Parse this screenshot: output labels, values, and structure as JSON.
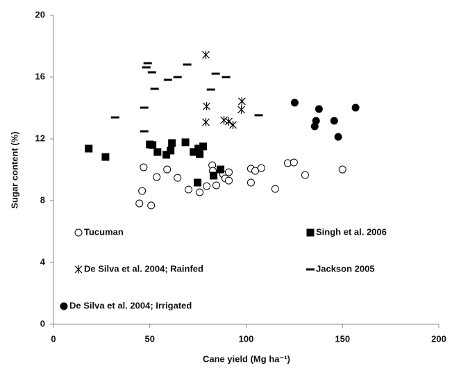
{
  "chart_data": {
    "type": "scatter",
    "x_label": "Cane yield (Mg ha⁻¹)",
    "y_label": "Sugar content (%)",
    "xlim": [
      0,
      200
    ],
    "xticks": [
      0,
      50,
      100,
      150,
      200
    ],
    "ylim": [
      0,
      20
    ],
    "yticks": [
      0,
      4,
      8,
      12,
      16,
      20
    ],
    "grid": false,
    "series": [
      {
        "name": "Tucuman",
        "color": "#000000",
        "marker": "circle-open",
        "x": [
          46.8,
          46,
          44.6,
          50.7,
          53.6,
          59,
          64.4,
          70.1,
          75.9,
          79.5,
          82.4,
          82.7,
          84.5,
          88.1,
          89.2,
          91,
          91,
          102.5,
          102.5,
          104.7,
          107.9,
          115.1,
          121.6,
          124.8,
          130.6,
          150
        ],
        "values": [
          10.16,
          8.63,
          7.82,
          7.69,
          9.53,
          10.02,
          9.48,
          8.72,
          8.54,
          8.94,
          10.29,
          9.93,
          8.99,
          9.71,
          9.44,
          9.84,
          9.3,
          10.07,
          9.17,
          9.93,
          10.11,
          8.76,
          10.43,
          10.47,
          9.66,
          10.02
        ]
      },
      {
        "name": "Singh et al. 2006",
        "color": "#000000",
        "marker": "square",
        "x": [
          18.3,
          27,
          50,
          51.4,
          54,
          58.6,
          60.8,
          61.5,
          68.5,
          72.7,
          75.2,
          75.9,
          77.7,
          74.8,
          83.1,
          86.7
        ],
        "values": [
          11.37,
          10.83,
          11.64,
          11.6,
          11.15,
          10.97,
          11.24,
          11.73,
          11.78,
          11.15,
          11.37,
          11.01,
          11.51,
          9.17,
          9.62,
          10.02
        ]
      },
      {
        "name": "De Silva et al. 2004; Rainfed",
        "color": "#000000",
        "marker": "asterisk",
        "x": [
          79.1,
          79.5,
          79.1,
          88.5,
          91,
          93.2,
          97.5,
          97.8
        ],
        "values": [
          17.44,
          14.11,
          13.08,
          13.21,
          13.12,
          12.9,
          13.89,
          14.43
        ]
      },
      {
        "name": "Jackson 2005",
        "color": "#000000",
        "marker": "dash",
        "x": [
          32,
          47.1,
          47.1,
          48.2,
          48.9,
          51.1,
          52.5,
          59.4,
          64.4,
          69.4,
          81.7,
          84.2,
          89.6,
          106.5
        ],
        "values": [
          13.39,
          14.02,
          12.49,
          16.63,
          16.9,
          16.31,
          15.24,
          15.82,
          16.0,
          16.81,
          15.19,
          16.22,
          16.0,
          13.53
        ]
      },
      {
        "name": "De Silva et al. 2004; Irrigated",
        "color": "#000000",
        "marker": "circle",
        "x": [
          125.2,
          135.6,
          136.3,
          137.8,
          145.7,
          147.8,
          156.8
        ],
        "values": [
          14.34,
          12.81,
          13.17,
          13.93,
          13.17,
          12.13,
          14.02
        ]
      }
    ]
  }
}
